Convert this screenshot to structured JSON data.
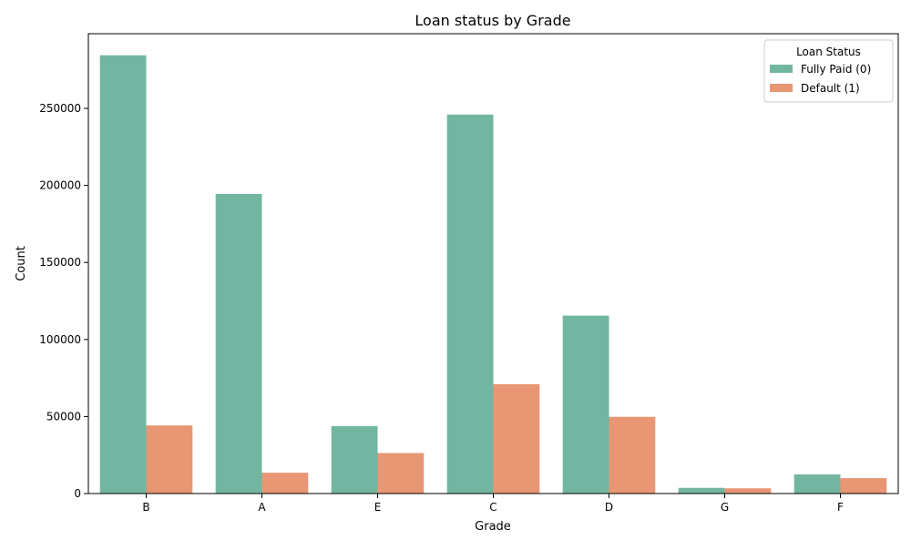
{
  "chart_data": {
    "type": "bar",
    "title": "Loan status by Grade",
    "xlabel": "Grade",
    "ylabel": "Count",
    "categories": [
      "B",
      "A",
      "E",
      "C",
      "D",
      "G",
      "F"
    ],
    "series": [
      {
        "name": "Fully Paid (0)",
        "color": "#72b6a1",
        "values": [
          284500,
          194500,
          43800,
          246000,
          115500,
          3700,
          12400
        ]
      },
      {
        "name": "Default (1)",
        "color": "#e99675",
        "values": [
          44200,
          13500,
          26300,
          71000,
          49800,
          3400,
          10000
        ]
      }
    ],
    "ylim": [
      0,
      298500
    ],
    "yticks": [
      0,
      50000,
      100000,
      150000,
      200000,
      250000
    ],
    "ytick_labels": [
      "0",
      "50000",
      "100000",
      "150000",
      "200000",
      "250000"
    ],
    "grid": false,
    "legend": {
      "title": "Loan Status",
      "position": "top-right"
    }
  }
}
